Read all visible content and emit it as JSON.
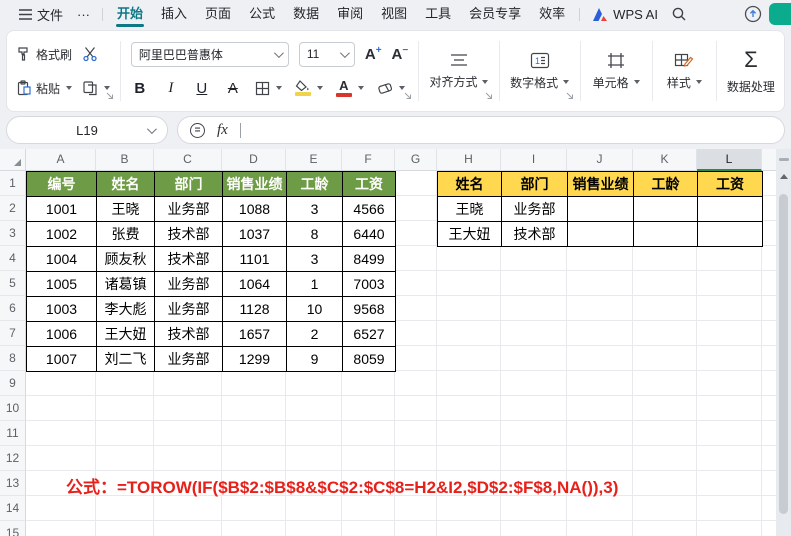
{
  "menu": {
    "file": "文件",
    "more": "···",
    "tabs": [
      {
        "label": "开始",
        "active": true
      },
      {
        "label": "插入"
      },
      {
        "label": "页面"
      },
      {
        "label": "公式"
      },
      {
        "label": "数据"
      },
      {
        "label": "审阅"
      },
      {
        "label": "视图"
      },
      {
        "label": "工具"
      },
      {
        "label": "会员专享"
      },
      {
        "label": "效率"
      }
    ],
    "brand": "WPS AI"
  },
  "toolbar": {
    "format_painter": "格式刷",
    "paste": "粘贴",
    "font_name": "阿里巴巴普惠体",
    "font_size": "11",
    "bold": "B",
    "italic": "I",
    "underline": "U",
    "strike": "A",
    "align": "对齐方式",
    "number_format": "数字格式",
    "cells": "单元格",
    "style": "样式",
    "data_process": "数据处理",
    "sigma": "Σ",
    "increase_font": "A",
    "decrease_font": "A"
  },
  "formula_bar": {
    "name_box": "L19",
    "fx": "fx"
  },
  "sheet": {
    "columns": [
      "A",
      "B",
      "C",
      "D",
      "E",
      "F",
      "G",
      "H",
      "I",
      "J",
      "K",
      "L"
    ],
    "selected_column": "L",
    "visible_rows": 15,
    "table1": {
      "headers": [
        "编号",
        "姓名",
        "部门",
        "销售业绩",
        "工龄",
        "工资"
      ],
      "rows": [
        [
          "1001",
          "王晓",
          "业务部",
          "1088",
          "3",
          "4566"
        ],
        [
          "1002",
          "张费",
          "技术部",
          "1037",
          "8",
          "6440"
        ],
        [
          "1004",
          "顾友秋",
          "技术部",
          "1101",
          "3",
          "8499"
        ],
        [
          "1005",
          "诸葛镇",
          "业务部",
          "1064",
          "1",
          "7003"
        ],
        [
          "1003",
          "李大彪",
          "业务部",
          "1128",
          "10",
          "9568"
        ],
        [
          "1006",
          "王大妞",
          "技术部",
          "1657",
          "2",
          "6527"
        ],
        [
          "1007",
          "刘二飞",
          "业务部",
          "1299",
          "9",
          "8059"
        ]
      ]
    },
    "table2": {
      "headers": [
        "姓名",
        "部门",
        "销售业绩",
        "工龄",
        "工资"
      ],
      "rows": [
        [
          "王晓",
          "业务部",
          "",
          "",
          ""
        ],
        [
          "王大妞",
          "技术部",
          "",
          "",
          ""
        ]
      ]
    },
    "annotation": {
      "text": "公式：=TOROW(IF($B$2:$B$8&$C$2:$C$8=H2&I2,$D$2:$F$8,NA()),3)"
    }
  },
  "colors": {
    "accent_teal": "#0e7886",
    "table1_header_bg": "#6e9b45",
    "table1_header_text": "#ffffff",
    "table2_header_bg": "#ffd84f",
    "table2_header_text": "#000000",
    "annotation_red": "#e8201a",
    "selection_green": "#2e8b46",
    "fill_swatch": "#f0d24b",
    "font_swatch": "#d8362a",
    "avatar_teal": "#0bab8e"
  }
}
